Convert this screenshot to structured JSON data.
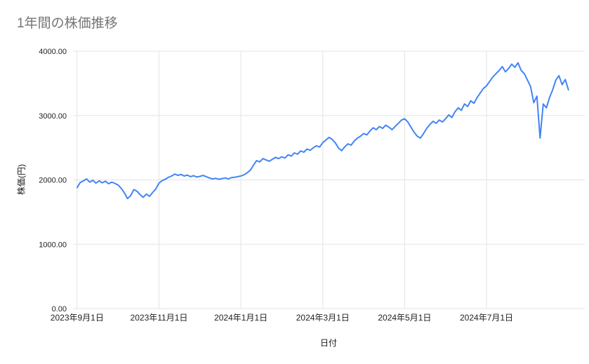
{
  "chart_data": {
    "type": "line",
    "title": "1年間の株価推移",
    "xlabel": "日付",
    "ylabel": "株価(円)",
    "x_tick_labels": [
      "2023年9月1日",
      "2023年11月1日",
      "2024年1月1日",
      "2024年3月1日",
      "2024年5月1日",
      "2024年7月1日"
    ],
    "x_tick_positions": [
      0,
      2,
      4,
      6,
      8,
      10
    ],
    "x_domain": [
      -0.1,
      12.4
    ],
    "x_start": 0,
    "x_end": 12,
    "ylim": [
      0,
      4000
    ],
    "y_ticks": [
      0,
      1000,
      2000,
      3000,
      4000
    ],
    "y_tick_labels": [
      "0.00",
      "1000.00",
      "2000.00",
      "3000.00",
      "4000.00"
    ],
    "grid": true,
    "legend": "none",
    "line_color": "#4285f4",
    "grid_color": "#e3e3e3",
    "tick_color": "#1f1f1f",
    "title_color": "#757575",
    "series": [
      {
        "name": "株価",
        "values": [
          1880,
          1960,
          1985,
          2015,
          1965,
          1995,
          1950,
          1985,
          1955,
          1980,
          1940,
          1965,
          1945,
          1920,
          1870,
          1800,
          1710,
          1755,
          1850,
          1825,
          1770,
          1730,
          1780,
          1745,
          1805,
          1860,
          1950,
          1990,
          2010,
          2040,
          2060,
          2090,
          2070,
          2085,
          2060,
          2075,
          2050,
          2065,
          2045,
          2055,
          2070,
          2050,
          2030,
          2015,
          2025,
          2010,
          2020,
          2030,
          2015,
          2035,
          2040,
          2050,
          2060,
          2080,
          2110,
          2150,
          2230,
          2300,
          2280,
          2330,
          2310,
          2290,
          2320,
          2350,
          2330,
          2360,
          2340,
          2390,
          2370,
          2420,
          2400,
          2450,
          2430,
          2480,
          2460,
          2500,
          2530,
          2510,
          2580,
          2620,
          2660,
          2630,
          2575,
          2495,
          2455,
          2515,
          2560,
          2540,
          2605,
          2650,
          2680,
          2720,
          2700,
          2760,
          2810,
          2780,
          2830,
          2800,
          2850,
          2820,
          2780,
          2830,
          2880,
          2930,
          2950,
          2900,
          2820,
          2740,
          2680,
          2650,
          2720,
          2800,
          2860,
          2910,
          2880,
          2930,
          2900,
          2950,
          3010,
          2970,
          3060,
          3120,
          3080,
          3180,
          3140,
          3230,
          3190,
          3280,
          3350,
          3420,
          3460,
          3530,
          3600,
          3650,
          3700,
          3760,
          3680,
          3730,
          3800,
          3750,
          3820,
          3700,
          3650,
          3550,
          3450,
          3200,
          3300,
          2650,
          3180,
          3120,
          3280,
          3400,
          3550,
          3620,
          3480,
          3560,
          3400
        ]
      }
    ]
  }
}
